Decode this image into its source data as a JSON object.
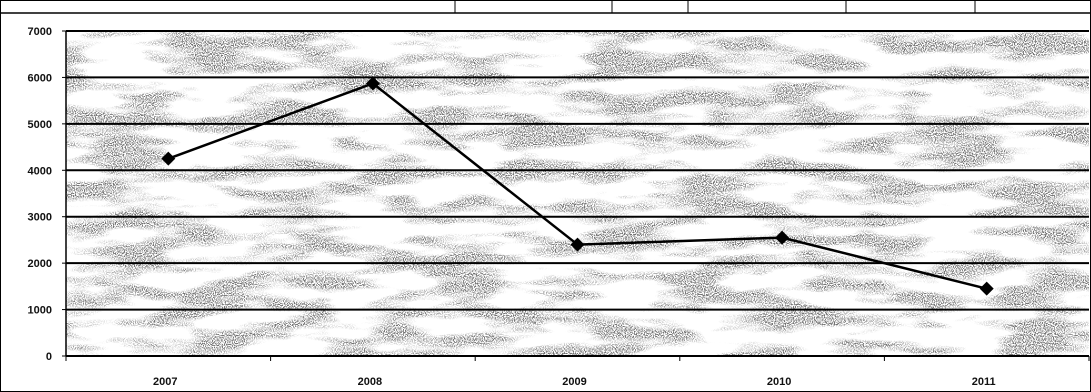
{
  "chart_data": {
    "type": "line",
    "title": "",
    "xlabel": "",
    "ylabel": "",
    "categories": [
      "2007",
      "2008",
      "2009",
      "2010",
      "2011"
    ],
    "series": [
      {
        "values": [
          4250,
          5870,
          2400,
          2550,
          1450
        ],
        "color": "#000000",
        "marker": "diamond"
      }
    ],
    "ylim": [
      0,
      7000
    ],
    "y_ticks": [
      0,
      1000,
      2000,
      3000,
      4000,
      5000,
      6000,
      7000
    ],
    "y_tick_labels": [
      "0",
      "1000",
      "2000",
      "3000",
      "4000",
      "5000",
      "6000",
      "7000"
    ],
    "grid": true,
    "gridline_color": "#000000",
    "plot_background": "noisy gray halftone texture",
    "legend": "none"
  }
}
